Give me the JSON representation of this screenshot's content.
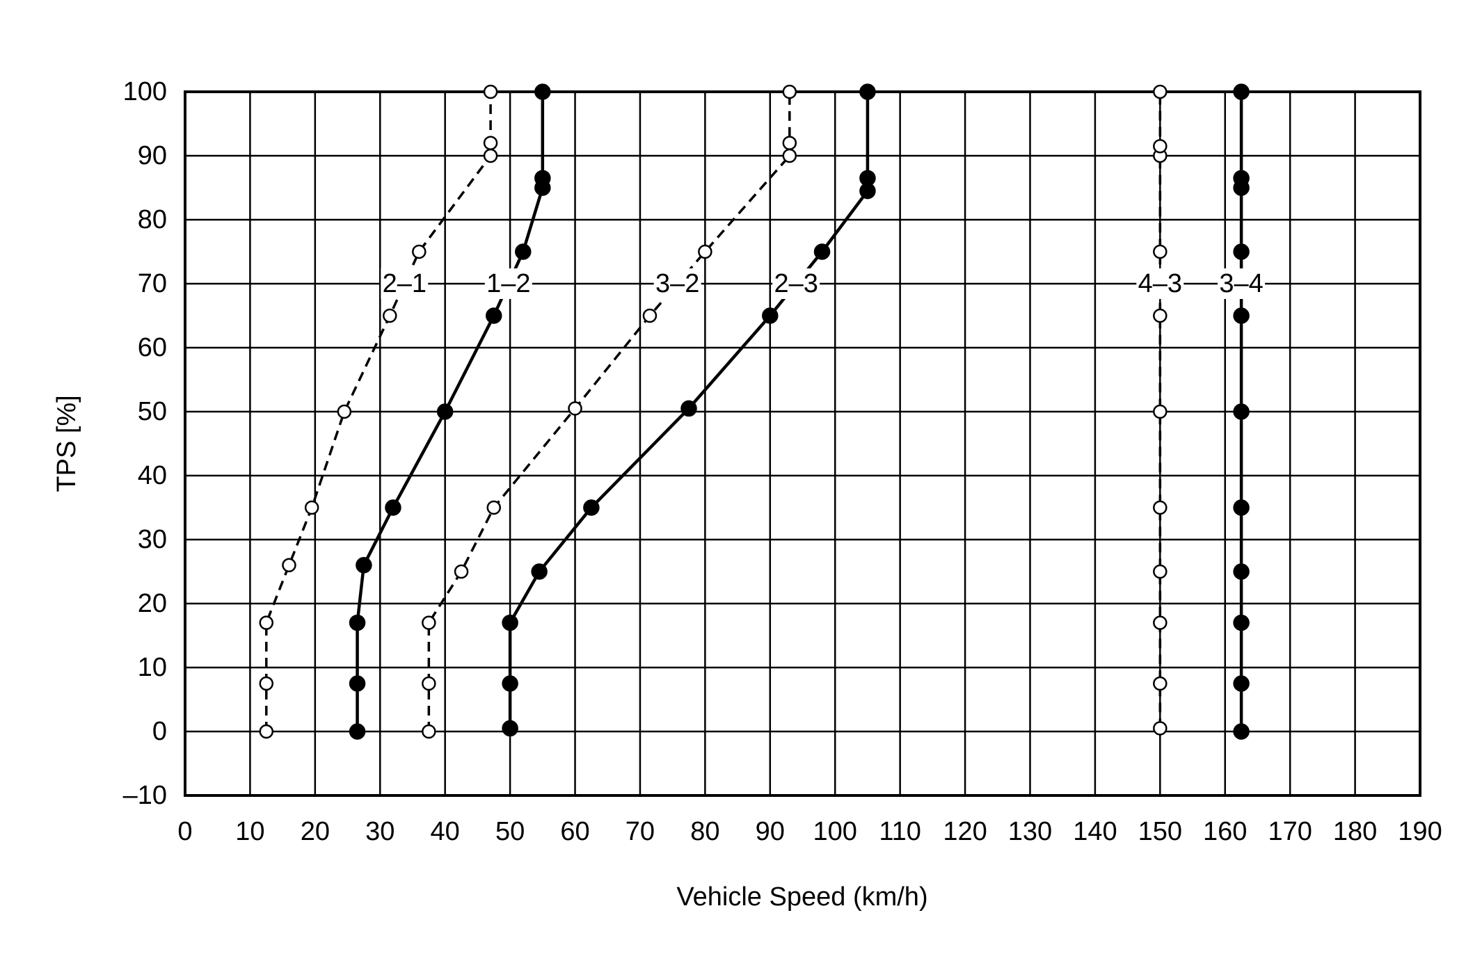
{
  "chart_data": {
    "type": "line",
    "xlabel": "Vehicle Speed (km/h)",
    "ylabel": "TPS [%]",
    "xlim": [
      0,
      190
    ],
    "ylim": [
      -10,
      100
    ],
    "xticks": [
      0,
      10,
      20,
      30,
      40,
      50,
      60,
      70,
      80,
      90,
      100,
      110,
      120,
      130,
      140,
      150,
      160,
      170,
      180,
      190
    ],
    "yticks": [
      {
        "value": -10,
        "label": "–10"
      },
      0,
      10,
      20,
      30,
      40,
      50,
      60,
      70,
      80,
      90,
      100
    ],
    "grid": true,
    "series": [
      {
        "name": "2–1",
        "color": "#000000",
        "linestyle": "dashed",
        "marker": "open",
        "x": [
          12.5,
          12.5,
          12.5,
          16,
          19.5,
          24.5,
          31.5,
          36,
          47,
          47,
          47
        ],
        "values": [
          0,
          7.5,
          17,
          26,
          35,
          50,
          65,
          75,
          90,
          92,
          100
        ]
      },
      {
        "name": "1–2",
        "color": "#000000",
        "linestyle": "solid",
        "marker": "filled",
        "x": [
          26.5,
          26.5,
          26.5,
          27.5,
          32,
          40,
          47.5,
          52,
          55,
          55,
          55
        ],
        "values": [
          0,
          7.5,
          17,
          26,
          35,
          50,
          65,
          75,
          85,
          86.5,
          100
        ]
      },
      {
        "name": "3–2",
        "color": "#000000",
        "linestyle": "dashed",
        "marker": "open",
        "x": [
          37.5,
          37.5,
          37.5,
          42.5,
          47.5,
          60,
          71.5,
          80,
          93,
          93,
          93
        ],
        "values": [
          0,
          7.5,
          17,
          25,
          35,
          50.5,
          65,
          75,
          90,
          92,
          100
        ]
      },
      {
        "name": "2–3",
        "color": "#000000",
        "linestyle": "solid",
        "marker": "filled",
        "x": [
          50,
          50,
          50,
          54.5,
          62.5,
          77.5,
          90,
          98,
          105,
          105,
          105
        ],
        "values": [
          0.5,
          7.5,
          17,
          25,
          35,
          50.5,
          65,
          75,
          84.5,
          86.5,
          100
        ]
      },
      {
        "name": "4–3",
        "color": "#000000",
        "linestyle": "dashed",
        "marker": "open",
        "x": [
          150,
          150,
          150,
          150,
          150,
          150,
          150,
          150,
          150,
          150,
          150
        ],
        "values": [
          0.5,
          7.5,
          17,
          25,
          35,
          50,
          65,
          75,
          90,
          91.5,
          100
        ]
      },
      {
        "name": "3–4",
        "color": "#000000",
        "linestyle": "solid",
        "marker": "filled",
        "x": [
          162.5,
          162.5,
          162.5,
          162.5,
          162.5,
          162.5,
          162.5,
          162.5,
          162.5,
          162.5,
          162.5
        ],
        "values": [
          0,
          7.5,
          17,
          25,
          35,
          50,
          65,
          75,
          85,
          86.5,
          100
        ]
      }
    ]
  }
}
